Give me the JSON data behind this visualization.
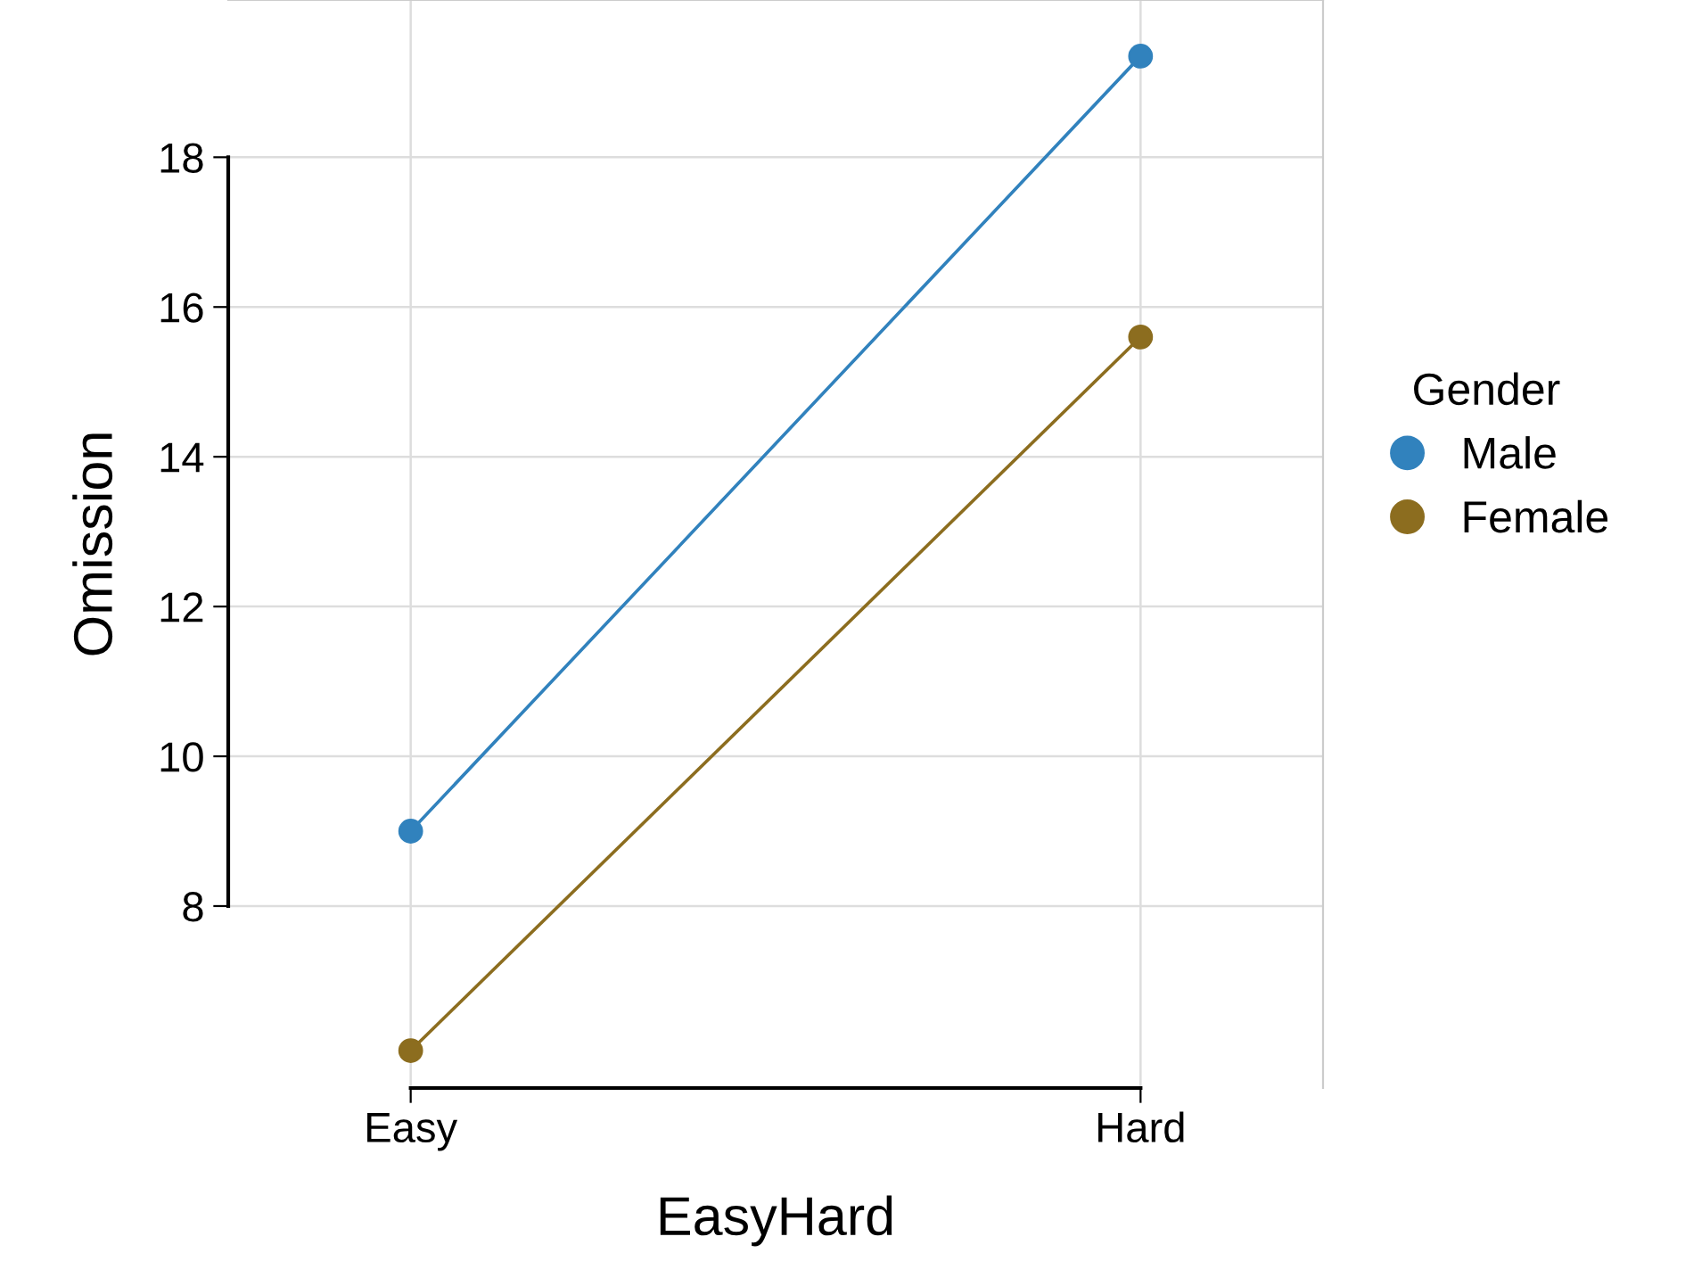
{
  "chart_data": {
    "type": "line",
    "xlabel": "EasyHard",
    "ylabel": "Omission",
    "legend_title": "Gender",
    "categories": [
      "Easy",
      "Hard"
    ],
    "series": [
      {
        "name": "Male",
        "color": "#3182bd",
        "values": [
          9.0,
          19.35
        ]
      },
      {
        "name": "Female",
        "color": "#8c6d1f",
        "values": [
          6.07,
          15.6
        ]
      }
    ],
    "ylim": [
      5.57,
      20.1
    ],
    "yticks": [
      8,
      10,
      12,
      14,
      16,
      18
    ],
    "grid": true,
    "legend": "right",
    "marker": "circle",
    "line_style": "solid"
  }
}
